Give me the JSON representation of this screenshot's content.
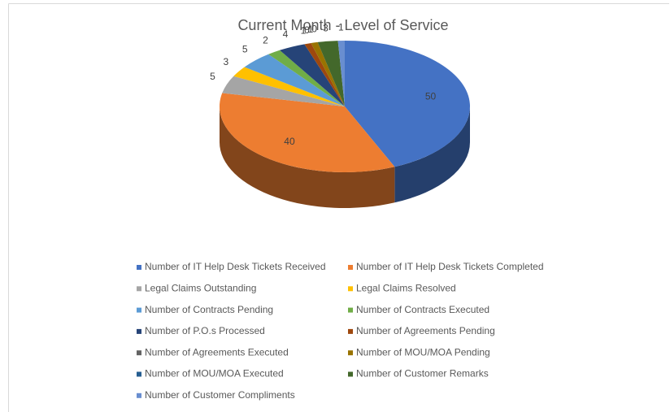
{
  "chart_data": {
    "type": "pie",
    "title": "Current Month - Level of Service",
    "categories": [
      "Number of IT Help Desk Tickets Received",
      "Number of IT Help Desk Tickets Completed",
      "Legal Claims Outstanding",
      "Legal Claims Resolved",
      "Number of Contracts Pending",
      "Number of Contracts Executed",
      "Number of P.O.s Processed",
      "Number of Agreements Pending",
      "Number of Agreements Executed",
      "Number of MOU/MOA Pending",
      "Number of MOU/MOA Executed",
      "Number of Customer Remarks",
      "Number of Customer Compliments"
    ],
    "values": [
      50,
      40,
      5,
      3,
      5,
      2,
      4,
      1,
      0,
      1,
      0,
      3,
      1
    ],
    "colors": [
      "#4472c4",
      "#ed7d31",
      "#a5a5a5",
      "#ffc000",
      "#5b9bd5",
      "#70ad47",
      "#264478",
      "#9e480e",
      "#636363",
      "#997300",
      "#255e91",
      "#43682b",
      "#698ed0"
    ],
    "legend": "bottom"
  }
}
